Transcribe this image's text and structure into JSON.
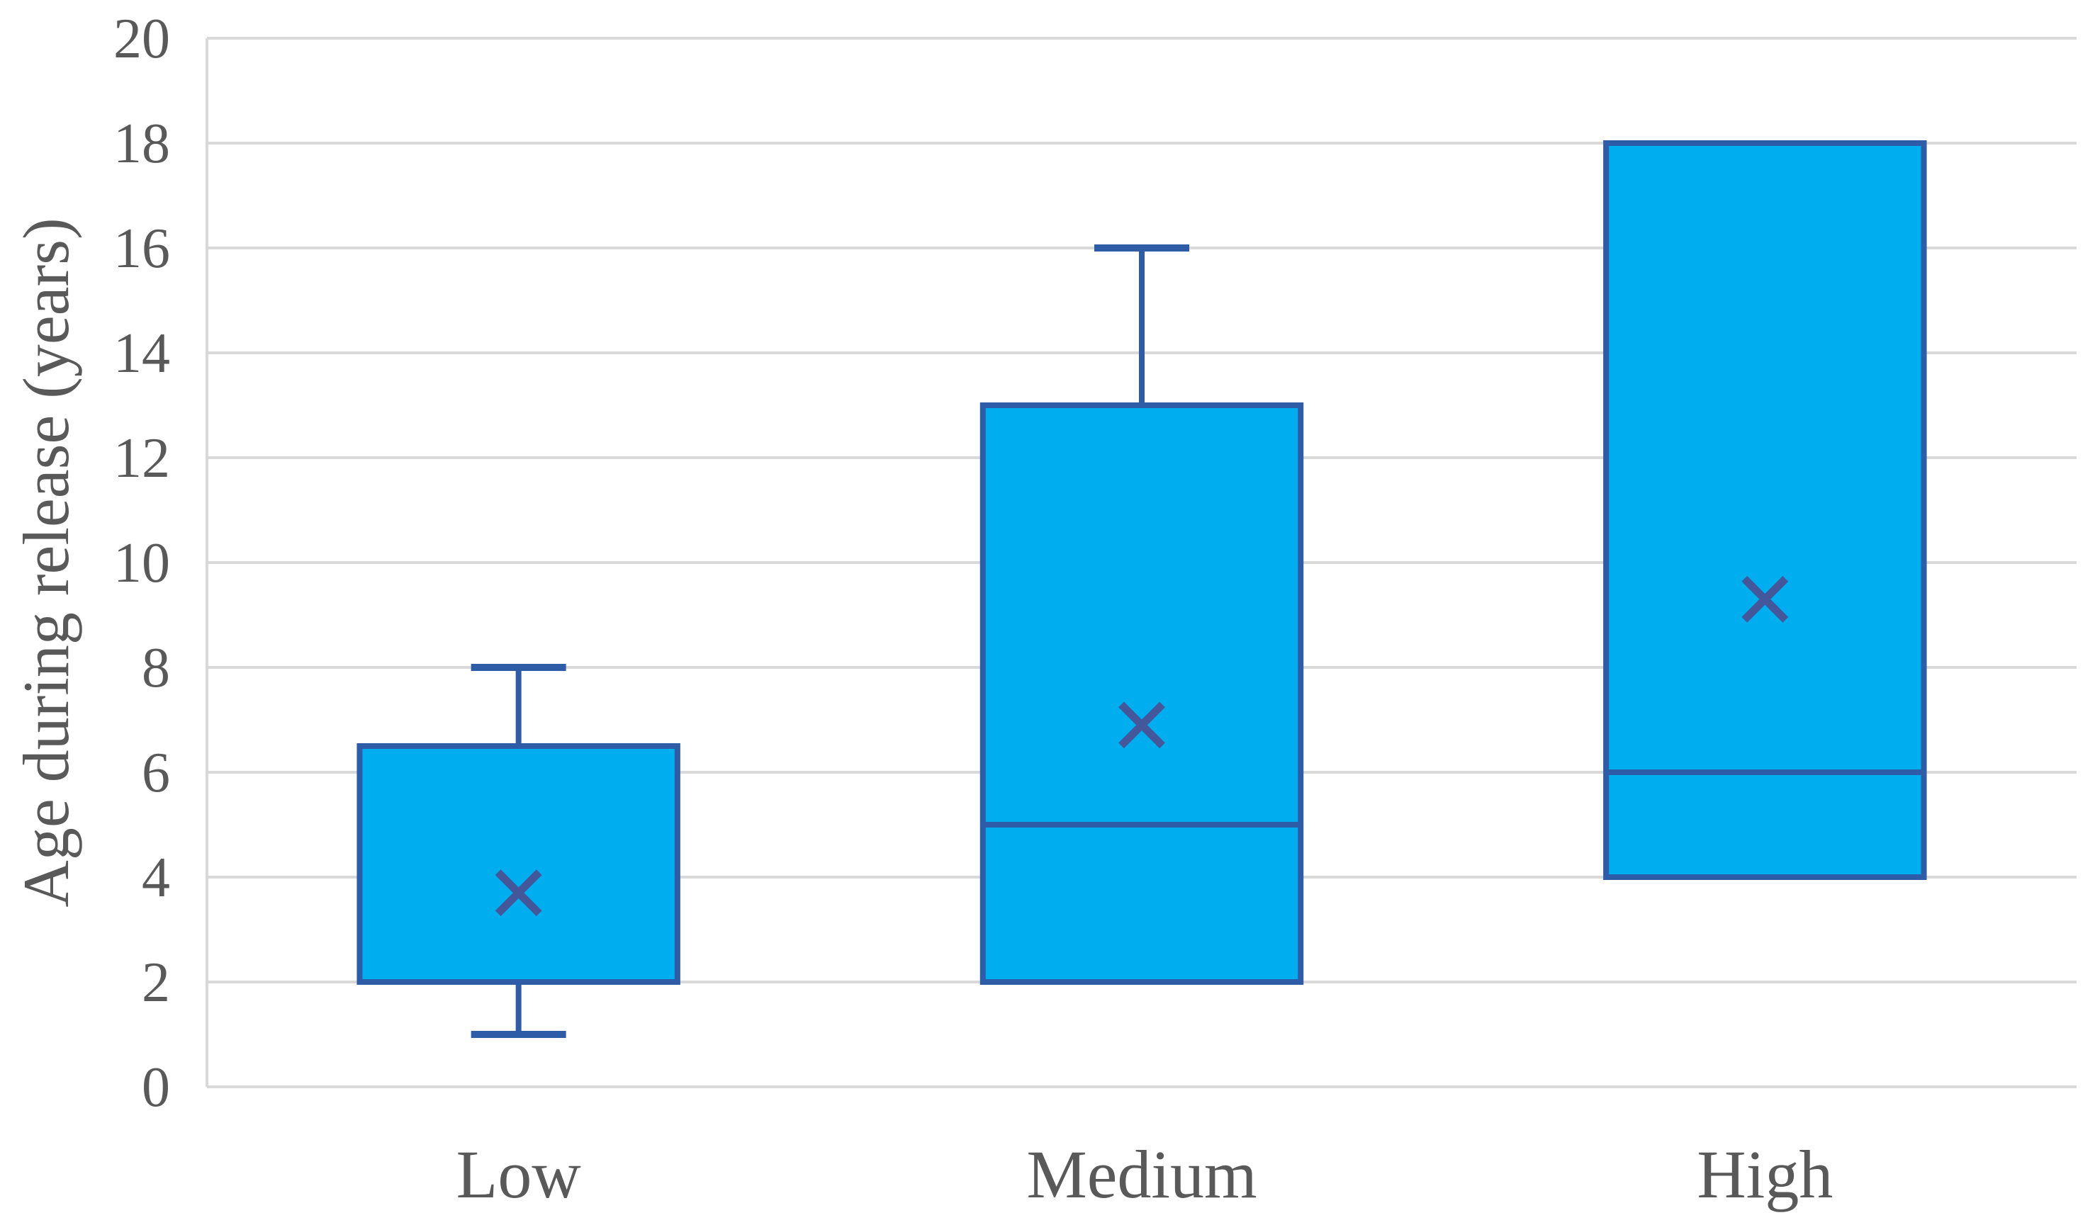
{
  "chart_data": {
    "type": "box",
    "title": "",
    "xlabel": "",
    "ylabel": "Age during release (years)",
    "categories": [
      "Low",
      "Medium",
      "High"
    ],
    "ylim": [
      0,
      20
    ],
    "yticks": [
      0,
      2,
      4,
      6,
      8,
      10,
      12,
      14,
      16,
      18,
      20
    ],
    "grid": true,
    "legend": false,
    "series": [
      {
        "category": "Low",
        "min": 1,
        "q1": 2,
        "median": 2,
        "q3": 6.5,
        "max": 8,
        "mean": 3.7
      },
      {
        "category": "Medium",
        "min": 2,
        "q1": 2,
        "median": 5,
        "q3": 13,
        "max": 16,
        "mean": 6.9
      },
      {
        "category": "High",
        "min": 4,
        "q1": 4,
        "median": 6,
        "q3": 18,
        "max": 18,
        "mean": 9.3
      }
    ],
    "colors": {
      "box_fill": "#00ADEE",
      "box_border": "#2E5CA6",
      "mean_marker": "#44579B",
      "gridline": "#D9D9D9",
      "axis_line": "#D9D9D9",
      "label_text": "#595959",
      "background": "#FFFFFF"
    }
  }
}
